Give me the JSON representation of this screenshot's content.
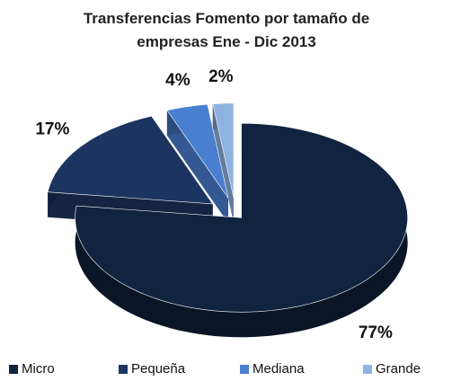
{
  "chart_data": {
    "type": "pie3d",
    "title": "Transferencias Fomento por tamaño de empresas Ene - Dic 2013",
    "categories": [
      "Micro",
      "Pequeña",
      "Mediana",
      "Grande"
    ],
    "values": [
      77,
      17,
      4,
      2
    ],
    "value_labels": [
      "77%",
      "17%",
      "4%",
      "2%"
    ],
    "colors": [
      "#10233f",
      "#1c3560",
      "#4a7fd0",
      "#8fb3e0"
    ],
    "legend": "bottom"
  }
}
